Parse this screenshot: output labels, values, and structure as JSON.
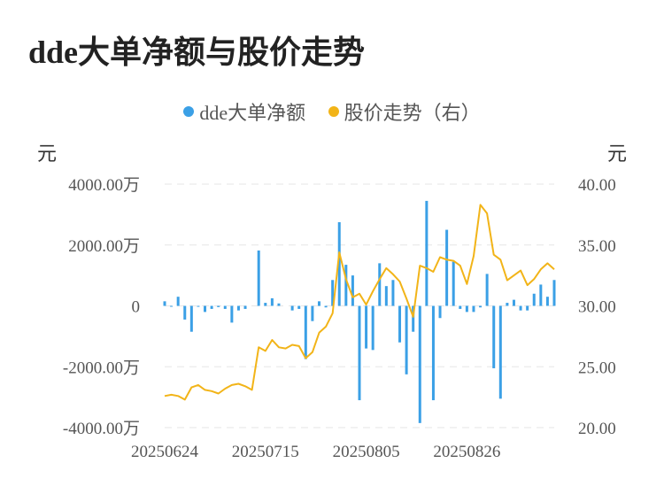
{
  "title": "dde大单净额与股价走势",
  "chart_data": {
    "type": "bar+line",
    "legend": [
      {
        "name": "dde大单净额",
        "color": "#3BA0E6"
      },
      {
        "name": "股价走势（右）",
        "color": "#F2B418"
      }
    ],
    "y_left": {
      "unit": "元",
      "ticks": [
        "4000.00万",
        "2000.00万",
        "0",
        "-2000.00万",
        "-4000.00万"
      ],
      "range": [
        -4000,
        4000
      ]
    },
    "y_right": {
      "unit": "元",
      "ticks": [
        "40.00",
        "35.00",
        "30.00",
        "25.00",
        "20.00"
      ],
      "range": [
        20,
        40
      ]
    },
    "x_ticks": [
      "20250624",
      "20250715",
      "20250805",
      "20250826"
    ],
    "x_tick_index": [
      0,
      15,
      30,
      45
    ],
    "bars_wan": [
      150,
      -20,
      300,
      -450,
      -850,
      -30,
      -200,
      -100,
      -40,
      -100,
      -550,
      -150,
      -100,
      0,
      1820,
      100,
      250,
      80,
      0,
      -150,
      -100,
      -1750,
      -500,
      150,
      -50,
      850,
      2750,
      1350,
      1000,
      -3100,
      -1400,
      -1450,
      1400,
      650,
      850,
      -1200,
      -2250,
      -850,
      -3850,
      3450,
      -3100,
      -400,
      2500,
      1450,
      -100,
      -200,
      -200,
      -50,
      1050,
      -2050,
      -3050,
      100,
      200,
      -150,
      -150,
      400,
      700,
      300,
      850
    ],
    "price": [
      22.6,
      22.7,
      22.6,
      22.3,
      23.3,
      23.5,
      23.1,
      23.0,
      22.8,
      23.2,
      23.5,
      23.6,
      23.4,
      23.1,
      26.6,
      26.3,
      27.2,
      26.6,
      26.5,
      26.8,
      26.7,
      25.7,
      26.2,
      27.8,
      28.3,
      29.4,
      34.4,
      32.2,
      30.7,
      31.0,
      30.1,
      31.2,
      32.2,
      33.1,
      32.6,
      32.0,
      30.6,
      29.1,
      33.3,
      33.1,
      32.8,
      34.0,
      33.8,
      33.7,
      33.3,
      31.8,
      34.1,
      38.3,
      37.6,
      34.2,
      33.8,
      32.1,
      32.5,
      32.9,
      31.7,
      32.2,
      33.0,
      33.5,
      33.0
    ]
  }
}
